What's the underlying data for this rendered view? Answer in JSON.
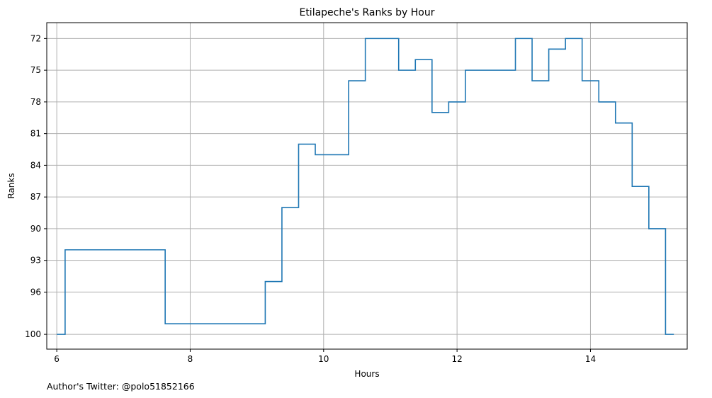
{
  "chart_data": {
    "type": "line",
    "title": "Etilapeche's Ranks by Hour",
    "xlabel": "Hours",
    "ylabel": "Ranks",
    "xlim": [
      5.85,
      15.45
    ],
    "ylim": [
      101.4,
      70.5
    ],
    "y_inverted": true,
    "grid": true,
    "step_style": "steps-mid",
    "color": "#1f77b4",
    "x_ticks": [
      6,
      8,
      10,
      12,
      14
    ],
    "y_ticks": [
      72,
      75,
      78,
      81,
      84,
      87,
      90,
      93,
      96,
      100
    ],
    "x": [
      6.0,
      6.25,
      7.5,
      7.75,
      8.0,
      8.25,
      8.5,
      8.75,
      9.0,
      9.25,
      9.5,
      9.75,
      10.0,
      10.25,
      10.5,
      10.75,
      11.0,
      11.25,
      11.5,
      11.75,
      12.0,
      12.25,
      12.5,
      12.75,
      13.0,
      13.25,
      13.5,
      13.75,
      14.0,
      14.25,
      14.5,
      14.75,
      15.0,
      15.25
    ],
    "y": [
      100,
      92,
      92,
      99,
      99,
      99,
      99,
      99,
      99,
      95,
      88,
      82,
      83,
      83,
      76,
      72,
      72,
      75,
      74,
      79,
      78,
      75,
      75,
      75,
      72,
      76,
      73,
      72,
      76,
      78,
      80,
      86,
      90,
      100
    ]
  },
  "footer": {
    "author": "Author's Twitter: @polo51852166"
  }
}
